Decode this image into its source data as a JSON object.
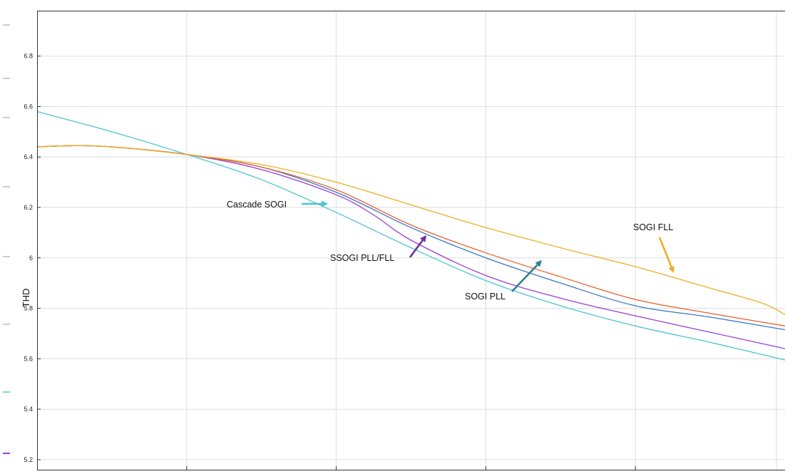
{
  "chart_data": {
    "type": "line",
    "ylabel": "THD",
    "xlabel": "",
    "ylim": [
      5.16,
      6.98
    ],
    "yticks": [
      5.2,
      5.4,
      5.6,
      5.8,
      6,
      6.2,
      6.4,
      6.6,
      6.8
    ],
    "yticklabels": [
      "5.2",
      "5.4",
      "5.6",
      "5.8",
      "6",
      "6.2",
      "6.4",
      "6.6",
      "6.8"
    ],
    "grid": true,
    "series": [
      {
        "name": "Cascade SOGI",
        "color": "#4bc5d2",
        "x": [
          0,
          0.1,
          0.2,
          0.3,
          0.4,
          0.5,
          0.6,
          0.7,
          0.8,
          0.9,
          1
        ],
        "y": [
          6.58,
          6.5,
          6.41,
          6.31,
          6.18,
          6.04,
          5.91,
          5.81,
          5.73,
          5.665,
          5.595
        ]
      },
      {
        "name": "SSOGI PLL/FLL",
        "color": "#9a3fd6",
        "x": [
          0,
          0.05,
          0.1,
          0.2,
          0.3,
          0.4,
          0.45,
          0.5,
          0.6,
          0.7,
          0.8,
          0.9,
          1
        ],
        "y": [
          6.44,
          6.445,
          6.44,
          6.41,
          6.35,
          6.25,
          6.17,
          6.07,
          5.93,
          5.84,
          5.77,
          5.705,
          5.64
        ]
      },
      {
        "name": "SOGI PLL",
        "color": "#3577c7",
        "x": [
          0,
          0.05,
          0.1,
          0.2,
          0.3,
          0.4,
          0.5,
          0.6,
          0.7,
          0.8,
          0.9,
          1
        ],
        "y": [
          6.44,
          6.445,
          6.44,
          6.41,
          6.36,
          6.26,
          6.12,
          6.0,
          5.9,
          5.81,
          5.765,
          5.715
        ]
      },
      {
        "name": "",
        "color": "#e8622a",
        "x": [
          0,
          0.05,
          0.1,
          0.2,
          0.3,
          0.4,
          0.5,
          0.6,
          0.7,
          0.8,
          0.9,
          1
        ],
        "y": [
          6.44,
          6.445,
          6.44,
          6.41,
          6.36,
          6.27,
          6.13,
          6.02,
          5.925,
          5.835,
          5.78,
          5.73
        ]
      },
      {
        "name": "SOGI FLL",
        "color": "#eeae22",
        "x": [
          0,
          0.05,
          0.1,
          0.2,
          0.3,
          0.4,
          0.5,
          0.6,
          0.7,
          0.8,
          0.9,
          0.97,
          1
        ],
        "y": [
          6.44,
          6.445,
          6.44,
          6.41,
          6.37,
          6.3,
          6.21,
          6.12,
          6.04,
          5.965,
          5.88,
          5.82,
          5.775
        ]
      }
    ],
    "annotations": [
      {
        "text": "Cascade SOGI",
        "color": "#4bc5d2",
        "points_to": [
          0.39,
          6.21
        ]
      },
      {
        "text": "SSOGI PLL/FLL",
        "color": "#6a2fa0",
        "points_to": [
          0.528,
          6.09
        ]
      },
      {
        "text": "SOGI PLL",
        "color": "#2e7f92",
        "points_to": [
          0.668,
          5.985
        ]
      },
      {
        "text": "SOGI FLL",
        "color": "#eeae22",
        "points_to": [
          0.861,
          5.92
        ]
      }
    ]
  }
}
